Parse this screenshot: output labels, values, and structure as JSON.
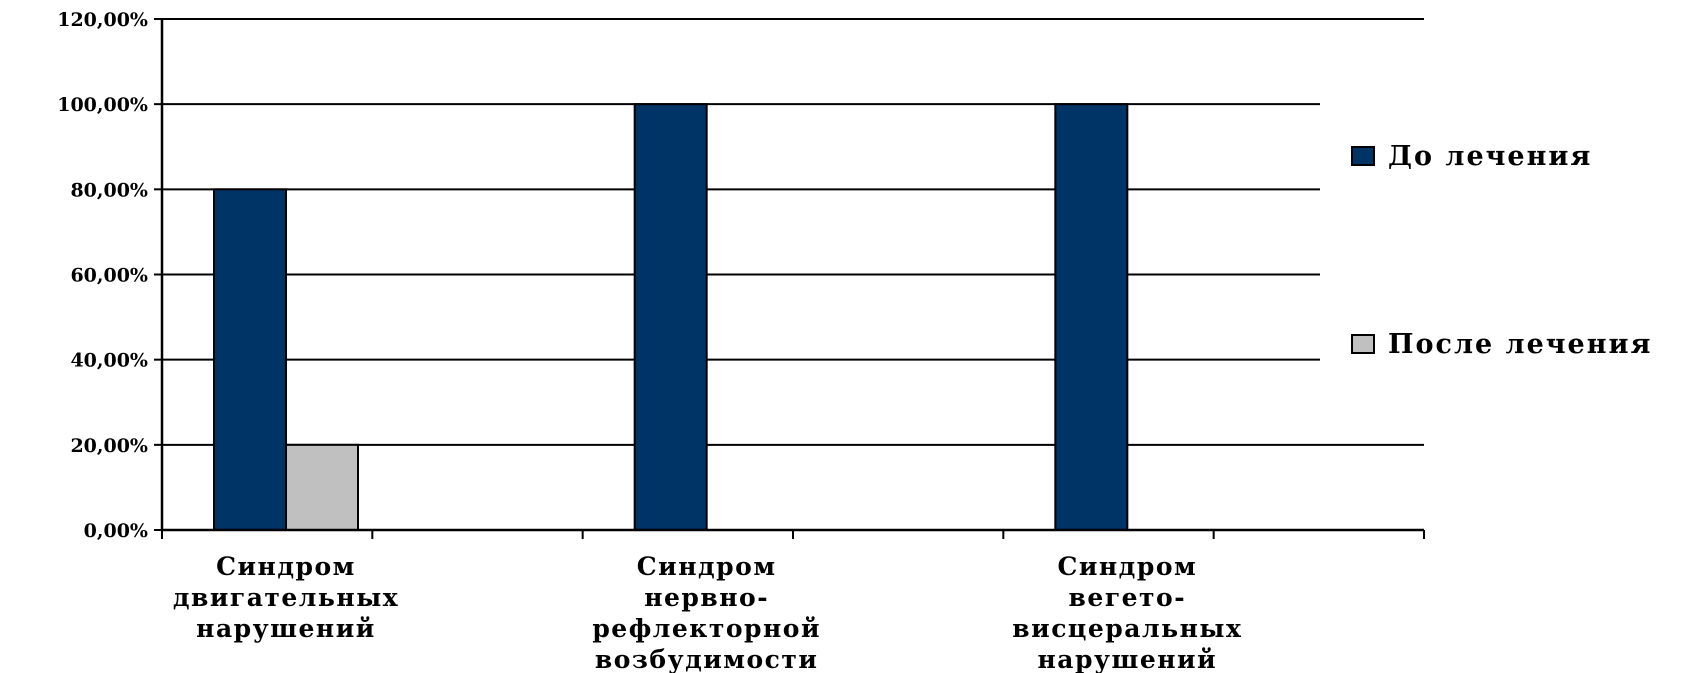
{
  "chart_data": {
    "type": "bar",
    "categories": [
      [
        "Синдром",
        "двигательных",
        "нарушений"
      ],
      [
        "Синдром",
        "нервно-",
        "рефлекторной",
        "возбудимости"
      ],
      [
        "Синдром",
        "вегето-",
        "висцеральных",
        "нарушений"
      ]
    ],
    "series": [
      {
        "name": "До лечения",
        "values": [
          80,
          100,
          100
        ],
        "color": "#003366"
      },
      {
        "name": "После лечения",
        "values": [
          20,
          0,
          0
        ],
        "color": "#c0c0c0"
      }
    ],
    "y_ticks": [
      "0,00%",
      "20,00%",
      "40,00%",
      "60,00%",
      "80,00%",
      "100,00%",
      "120,00%"
    ],
    "ylim": [
      0,
      120
    ],
    "grid": true,
    "legend_position": "right",
    "title": "",
    "xlabel": "",
    "ylabel": ""
  }
}
